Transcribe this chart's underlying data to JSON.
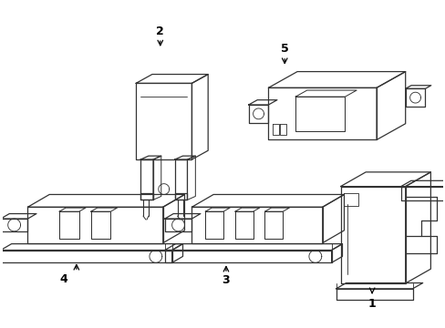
{
  "background_color": "#ffffff",
  "line_color": "#333333",
  "line_width": 0.9,
  "fig_width": 4.89,
  "fig_height": 3.6,
  "dpi": 100
}
